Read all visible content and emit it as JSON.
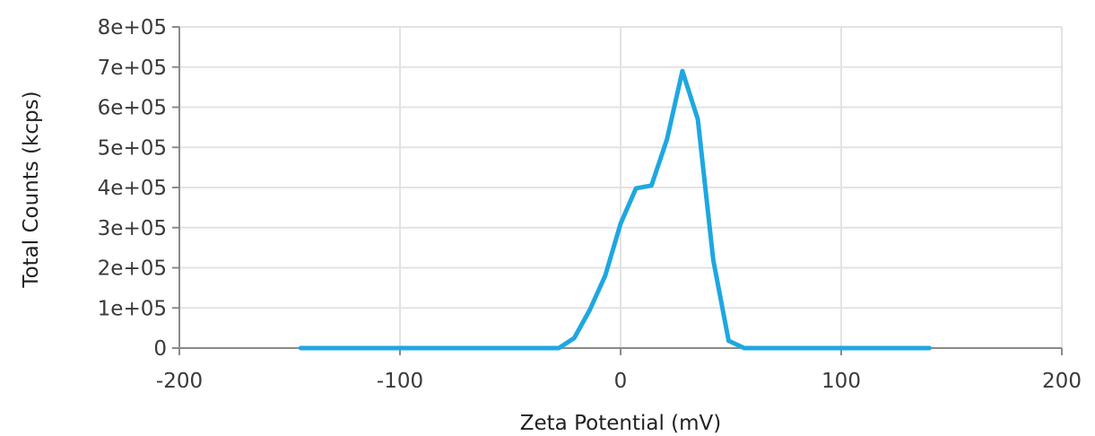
{
  "chart_data": {
    "type": "line",
    "xlabel": "Zeta Potential (mV)",
    "ylabel": "Total Counts (kcps)",
    "xlim": [
      -200,
      200
    ],
    "ylim": [
      0,
      800000
    ],
    "x_ticks": [
      -200,
      -100,
      0,
      100,
      200
    ],
    "x_tick_labels": [
      "-200",
      "-100",
      "0",
      "100",
      "200"
    ],
    "y_ticks": [
      0,
      100000,
      200000,
      300000,
      400000,
      500000,
      600000,
      700000,
      800000
    ],
    "y_tick_labels": [
      "0",
      "1e+05",
      "2e+05",
      "3e+05",
      "4e+05",
      "5e+05",
      "6e+05",
      "7e+05",
      "8e+05"
    ],
    "grid": true,
    "colors": {
      "series": "#1ea7e1",
      "grid": "#e3e3e3",
      "axis": "#8a8a8a"
    },
    "series": [
      {
        "x": [
          -145,
          -28,
          -21,
          -14,
          -7,
          0,
          7,
          14,
          21,
          28,
          35,
          42,
          49,
          56,
          140
        ],
        "y": [
          0,
          0,
          25000,
          95000,
          180000,
          310000,
          398000,
          405000,
          520000,
          690000,
          570000,
          220000,
          18000,
          0,
          0
        ]
      }
    ]
  }
}
